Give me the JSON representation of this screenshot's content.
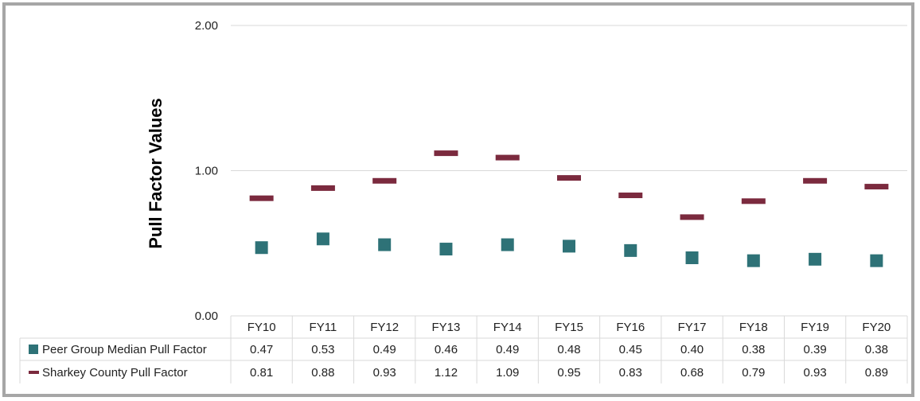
{
  "chart_data": {
    "type": "scatter",
    "title": "",
    "xlabel": "",
    "ylabel": "Pull Factor Values",
    "ylim": [
      0,
      2
    ],
    "yticks": [
      "0.00",
      "1.00",
      "2.00"
    ],
    "ytick_values": [
      0,
      1,
      2
    ],
    "grid": true,
    "categories": [
      "FY10",
      "FY11",
      "FY12",
      "FY13",
      "FY14",
      "FY15",
      "FY16",
      "FY17",
      "FY18",
      "FY19",
      "FY20"
    ],
    "series": [
      {
        "name": "Peer Group Median Pull Factor",
        "marker": "square",
        "color": "#2e7277",
        "values": [
          0.47,
          0.53,
          0.49,
          0.46,
          0.49,
          0.48,
          0.45,
          0.4,
          0.38,
          0.39,
          0.38
        ],
        "labels": [
          "0.47",
          "0.53",
          "0.49",
          "0.46",
          "0.49",
          "0.48",
          "0.45",
          "0.40",
          "0.38",
          "0.39",
          "0.38"
        ]
      },
      {
        "name": "Sharkey County Pull Factor",
        "marker": "dash",
        "color": "#7b2a3e",
        "values": [
          0.81,
          0.88,
          0.93,
          1.12,
          1.09,
          0.95,
          0.83,
          0.68,
          0.79,
          0.93,
          0.89
        ],
        "labels": [
          "0.81",
          "0.88",
          "0.93",
          "1.12",
          "1.09",
          "0.95",
          "0.83",
          "0.68",
          "0.79",
          "0.93",
          "0.89"
        ]
      }
    ],
    "data_table": true
  }
}
